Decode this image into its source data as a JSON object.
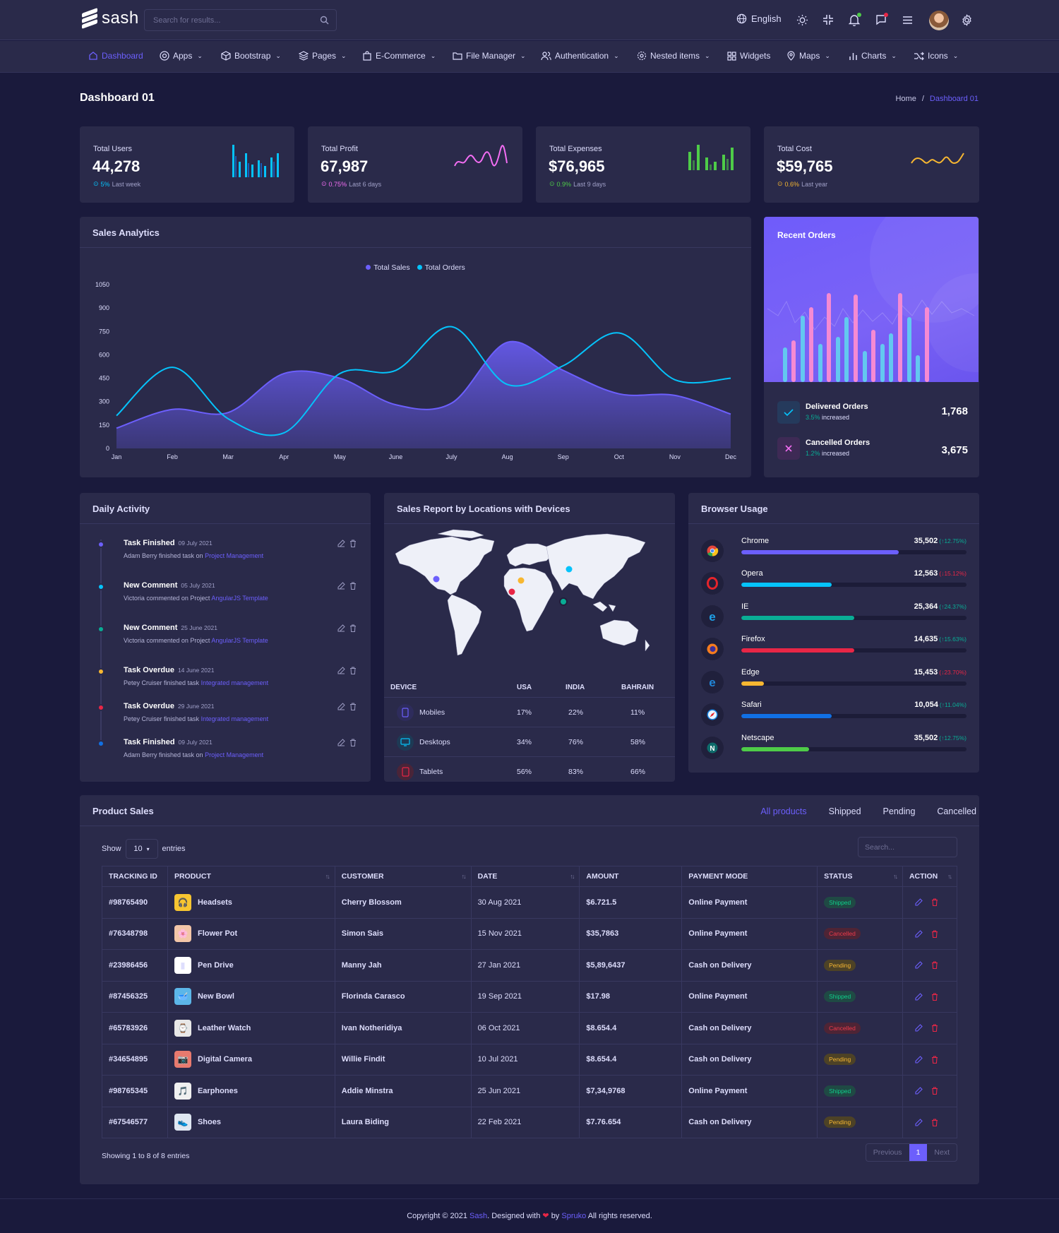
{
  "header": {
    "brand": "sash",
    "search_placeholder": "Search for results...",
    "language": "English"
  },
  "nav": {
    "items": [
      {
        "label": "Dashboard",
        "icon": "home-icon",
        "active": true
      },
      {
        "label": "Apps",
        "icon": "apps-icon"
      },
      {
        "label": "Bootstrap",
        "icon": "package-icon"
      },
      {
        "label": "Pages",
        "icon": "layers-icon"
      },
      {
        "label": "E-Commerce",
        "icon": "shopping-bag-icon"
      },
      {
        "label": "File Manager",
        "icon": "folder-icon"
      },
      {
        "label": "Authentication",
        "icon": "users-icon"
      },
      {
        "label": "Nested items",
        "icon": "settings-icon"
      },
      {
        "label": "Widgets",
        "icon": "grid-icon"
      },
      {
        "label": "Maps",
        "icon": "map-pin-icon"
      },
      {
        "label": "Charts",
        "icon": "bar-chart-icon"
      },
      {
        "label": "Icons",
        "icon": "shuffle-icon"
      }
    ]
  },
  "page": {
    "title": "Dashboard 01",
    "breadcrumb_home": "Home",
    "breadcrumb_sep": "/",
    "breadcrumb_current": "Dashboard 01"
  },
  "stats": [
    {
      "label": "Total Users",
      "value": "44,278",
      "change": "5%",
      "period": "Last week",
      "color": "#05c3fb"
    },
    {
      "label": "Total Profit",
      "value": "67,987",
      "change": "0.75%",
      "period": "Last 6 days",
      "color": "#f46ef4"
    },
    {
      "label": "Total Expenses",
      "value": "$76,965",
      "change": "0.9%",
      "period": "Last 9 days",
      "color": "#4ecc48"
    },
    {
      "label": "Total Cost",
      "value": "$59,765",
      "change": "0.6%",
      "period": "Last year",
      "color": "#f7b731"
    }
  ],
  "sales_analytics": {
    "title": "Sales Analytics"
  },
  "chart_data": {
    "type": "area",
    "categories": [
      "Jan",
      "Feb",
      "Mar",
      "Apr",
      "May",
      "June",
      "July",
      "Aug",
      "Sep",
      "Oct",
      "Nov",
      "Dec"
    ],
    "series": [
      {
        "name": "Total Sales",
        "values": [
          130,
          250,
          230,
          480,
          450,
          280,
          290,
          680,
          500,
          350,
          340,
          220
        ],
        "color": "#6c5ffc"
      },
      {
        "name": "Total Orders",
        "values": [
          210,
          520,
          190,
          100,
          480,
          500,
          780,
          410,
          530,
          740,
          440,
          450
        ],
        "color": "#05c3fb"
      }
    ],
    "ylim": [
      0,
      1050
    ],
    "yticks": [
      0,
      150,
      300,
      450,
      600,
      750,
      900,
      1050
    ],
    "legend": "top-center",
    "grid": false
  },
  "recent_orders": {
    "title": "Recent Orders",
    "delivered_label": "Delivered Orders",
    "delivered_change": "3.5%",
    "delivered_note": "increased",
    "delivered_value": "1,768",
    "cancelled_label": "Cancelled Orders",
    "cancelled_change": "1.2%",
    "cancelled_note": "increased",
    "cancelled_value": "3,675"
  },
  "daily_activity": {
    "title": "Daily Activity",
    "items": [
      {
        "title": "Task Finished",
        "date": "09 July 2021",
        "desc": "Adam Berry finished task on",
        "link": "Project Management",
        "color": "#6c5ffc"
      },
      {
        "title": "New Comment",
        "date": "05 July 2021",
        "desc": "Victoria commented on Project",
        "link": "AngularJS Template",
        "color": "#05c3fb"
      },
      {
        "title": "New Comment",
        "date": "25 June 2021",
        "desc": "Victoria commented on Project",
        "link": "AngularJS Template",
        "color": "#09ad95"
      },
      {
        "title": "Task Overdue",
        "date": "14 June 2021",
        "desc": "Petey Cruiser finished task",
        "link": "Integrated management",
        "color": "#f7b731"
      },
      {
        "title": "Task Overdue",
        "date": "29 June 2021",
        "desc": "Petey Cruiser finished task",
        "link": "Integrated management",
        "color": "#e82646"
      },
      {
        "title": "Task Finished",
        "date": "09 July 2021",
        "desc": "Adam Berry finished task on",
        "link": "Project Management",
        "color": "#1170e4"
      }
    ]
  },
  "sales_report": {
    "title": "Sales Report by Locations with Devices",
    "columns": [
      "DEVICE",
      "USA",
      "INDIA",
      "BAHRAIN"
    ],
    "rows": [
      {
        "device": "Mobiles",
        "usa": "17%",
        "india": "22%",
        "bahrain": "11%",
        "color": "#6c5ffc"
      },
      {
        "device": "Desktops",
        "usa": "34%",
        "india": "76%",
        "bahrain": "58%",
        "color": "#05c3fb"
      },
      {
        "device": "Tablets",
        "usa": "56%",
        "india": "83%",
        "bahrain": "66%",
        "color": "#e82646"
      }
    ]
  },
  "browser_usage": {
    "title": "Browser Usage",
    "items": [
      {
        "name": "Chrome",
        "value": "35,502",
        "change": "(↑12.75%)",
        "up": true,
        "pct": 70,
        "color": "#6c5ffc"
      },
      {
        "name": "Opera",
        "value": "12,563",
        "change": "(↓15.12%)",
        "up": false,
        "pct": 40,
        "color": "#05c3fb"
      },
      {
        "name": "IE",
        "value": "25,364",
        "change": "(↑24.37%)",
        "up": true,
        "pct": 50,
        "color": "#09ad95"
      },
      {
        "name": "Firefox",
        "value": "14,635",
        "change": "(↑15.63%)",
        "up": true,
        "pct": 50,
        "color": "#e82646"
      },
      {
        "name": "Edge",
        "value": "15,453",
        "change": "(↓23.70%)",
        "up": false,
        "pct": 10,
        "color": "#f7b731"
      },
      {
        "name": "Safari",
        "value": "10,054",
        "change": "(↑11.04%)",
        "up": true,
        "pct": 40,
        "color": "#1170e4"
      },
      {
        "name": "Netscape",
        "value": "35,502",
        "change": "(↑12.75%)",
        "up": true,
        "pct": 30,
        "color": "#4ecc48"
      }
    ]
  },
  "product_sales": {
    "title": "Product Sales",
    "tabs": [
      "All products",
      "Shipped",
      "Pending",
      "Cancelled"
    ],
    "show_label": "Show",
    "entries_value": "10",
    "entries_label": "entries",
    "search_placeholder": "Search...",
    "columns": [
      "TRACKING ID",
      "PRODUCT",
      "CUSTOMER",
      "DATE",
      "AMOUNT",
      "PAYMENT MODE",
      "STATUS",
      "ACTION"
    ],
    "rows": [
      {
        "id": "#98765490",
        "product": "Headsets",
        "customer": "Cherry Blossom",
        "date": "30 Aug 2021",
        "amount": "$6.721.5",
        "mode": "Online Payment",
        "status": "Shipped"
      },
      {
        "id": "#76348798",
        "product": "Flower Pot",
        "customer": "Simon Sais",
        "date": "15 Nov 2021",
        "amount": "$35,7863",
        "mode": "Online Payment",
        "status": "Cancelled"
      },
      {
        "id": "#23986456",
        "product": "Pen Drive",
        "customer": "Manny Jah",
        "date": "27 Jan 2021",
        "amount": "$5,89,6437",
        "mode": "Cash on Delivery",
        "status": "Pending"
      },
      {
        "id": "#87456325",
        "product": "New Bowl",
        "customer": "Florinda Carasco",
        "date": "19 Sep 2021",
        "amount": "$17.98",
        "mode": "Online Payment",
        "status": "Shipped"
      },
      {
        "id": "#65783926",
        "product": "Leather Watch",
        "customer": "Ivan Notheridiya",
        "date": "06 Oct 2021",
        "amount": "$8.654.4",
        "mode": "Cash on Delivery",
        "status": "Cancelled"
      },
      {
        "id": "#34654895",
        "product": "Digital Camera",
        "customer": "Willie Findit",
        "date": "10 Jul 2021",
        "amount": "$8.654.4",
        "mode": "Cash on Delivery",
        "status": "Pending"
      },
      {
        "id": "#98765345",
        "product": "Earphones",
        "customer": "Addie Minstra",
        "date": "25 Jun 2021",
        "amount": "$7,34,9768",
        "mode": "Online Payment",
        "status": "Shipped"
      },
      {
        "id": "#67546577",
        "product": "Shoes",
        "customer": "Laura Biding",
        "date": "22 Feb 2021",
        "amount": "$7.76.654",
        "mode": "Cash on Delivery",
        "status": "Pending"
      }
    ],
    "showing": "Showing 1 to 8 of 8 entries",
    "prev": "Previous",
    "page": "1",
    "next": "Next"
  },
  "footer": {
    "prefix": "Copyright © 2021",
    "brand": "Sash",
    "designed": ". Designed with",
    "heart": "❤",
    "by": "by",
    "company": "Spruko",
    "suffix": "All rights reserved."
  }
}
